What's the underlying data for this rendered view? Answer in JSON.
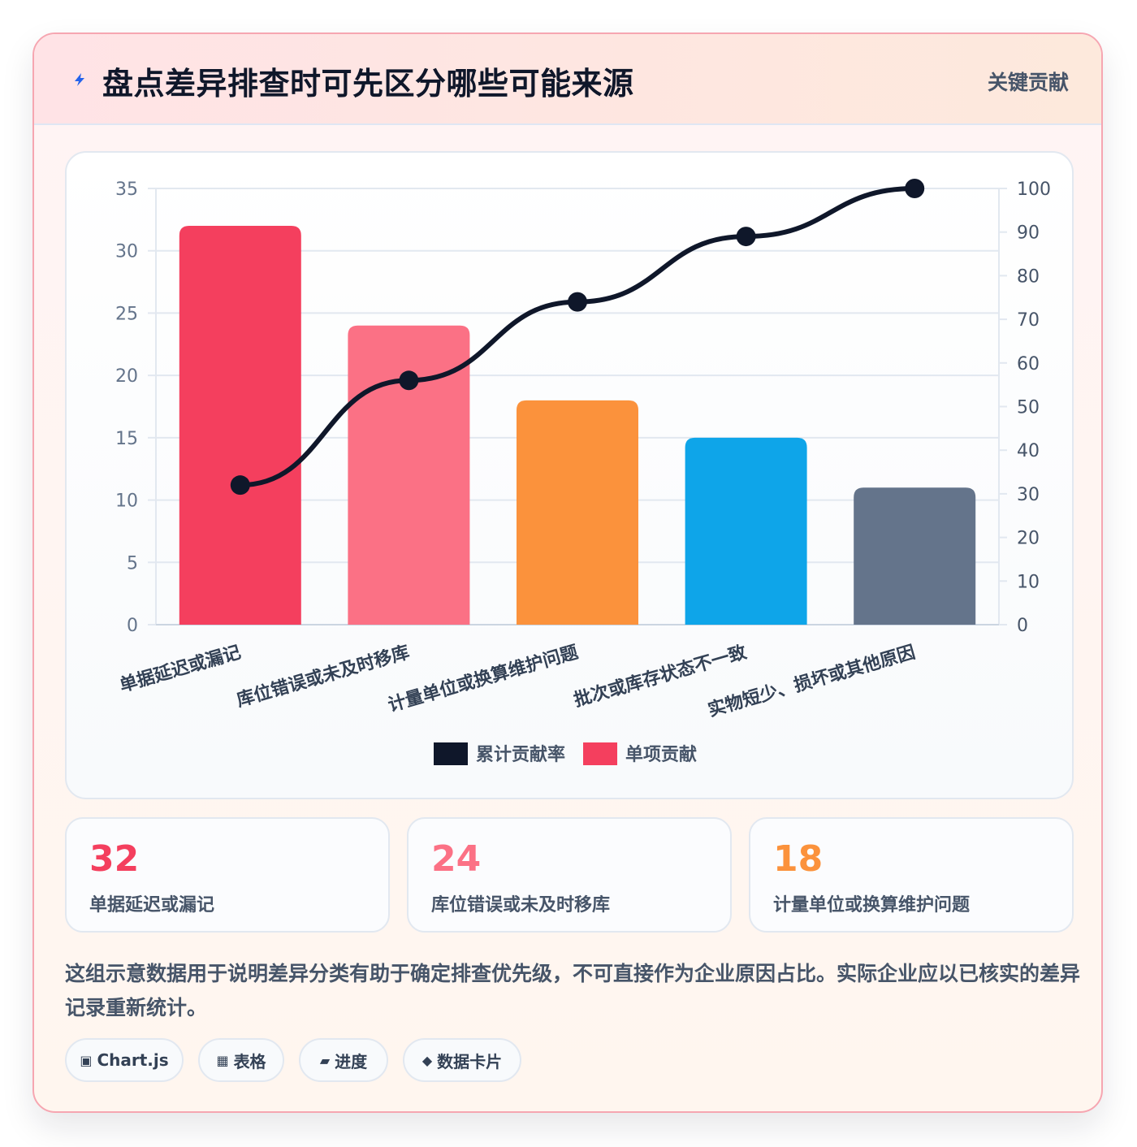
{
  "header": {
    "title": "盘点差异排查时可先区分哪些可能来源",
    "badge": "关键贡献",
    "icon": "lightning-icon"
  },
  "chart_data": {
    "type": "bar",
    "categories": [
      "单据延迟或漏记",
      "库位错误或未及时移库",
      "计量单位或换算维护问题",
      "批次或库存状态不一致",
      "实物短少、损坏或其他原因"
    ],
    "series": [
      {
        "name": "单项贡献",
        "type": "bar",
        "axis": "left",
        "values": [
          32,
          24,
          18,
          15,
          11
        ],
        "colors": [
          "#f43f5e",
          "#fb7185",
          "#fb923c",
          "#0ea5e9",
          "#64748b"
        ]
      },
      {
        "name": "累计贡献率",
        "type": "line",
        "axis": "right",
        "values": [
          32,
          56,
          74,
          89,
          100
        ],
        "color": "#0f172a"
      }
    ],
    "ylim": [
      0,
      35
    ],
    "yticks": [
      0,
      5,
      10,
      15,
      20,
      25,
      30,
      35
    ],
    "y2lim": [
      0,
      100
    ],
    "y2ticks": [
      0,
      10,
      20,
      30,
      40,
      50,
      60,
      70,
      80,
      90,
      100
    ],
    "grid": true,
    "legend": "bottom",
    "legend_items": [
      {
        "label": "累计贡献率",
        "color": "#0f172a"
      },
      {
        "label": "单项贡献",
        "color": "#f43f5e"
      }
    ]
  },
  "stats": [
    {
      "value": "32",
      "label": "单据延迟或漏记",
      "color": "#f43f5e"
    },
    {
      "value": "24",
      "label": "库位错误或未及时移库",
      "color": "#fb7185"
    },
    {
      "value": "18",
      "label": "计量单位或换算维护问题",
      "color": "#fb923c"
    }
  ],
  "note": "这组示意数据用于说明差异分类有助于确定排查优先级，不可直接作为企业原因占比。实际企业应以已核实的差异记录重新统计。",
  "tags": [
    {
      "icon": "▣",
      "label": "Chart.js"
    },
    {
      "icon": "▦",
      "label": "表格"
    },
    {
      "icon": "▰",
      "label": "进度"
    },
    {
      "icon": "◆",
      "label": "数据卡片"
    }
  ]
}
